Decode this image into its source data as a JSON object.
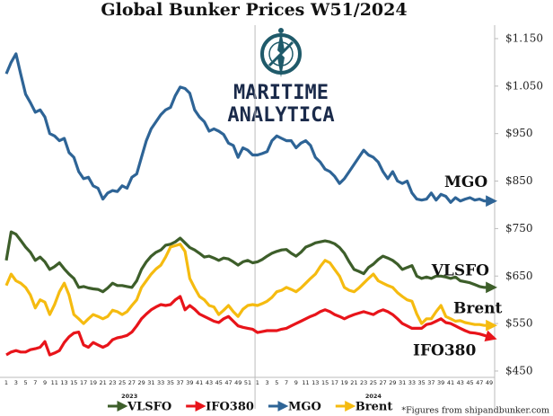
{
  "chart_data": {
    "type": "line",
    "title": "Global Bunker Prices W51/2024",
    "logo_lines": [
      "MARITIME",
      "ANALYTICA"
    ],
    "note": "*Figures from shipandbunker.com",
    "x_groups": [
      "2023",
      "2024"
    ],
    "categories": [
      "1",
      null,
      "3",
      null,
      "5",
      null,
      "7",
      null,
      "9",
      null,
      "11",
      null,
      "13",
      null,
      "15",
      null,
      "17",
      null,
      "19",
      null,
      "21",
      null,
      "23",
      null,
      "25",
      null,
      "27",
      null,
      "29",
      null,
      "31",
      null,
      "33",
      null,
      "35",
      null,
      "37",
      null,
      "39",
      null,
      "41",
      null,
      "43",
      null,
      "45",
      null,
      "47",
      null,
      "49",
      null,
      "51",
      null,
      "1",
      null,
      "3",
      null,
      "5",
      null,
      "7",
      null,
      "9",
      null,
      "11",
      null,
      "13",
      null,
      "15",
      null,
      "17",
      null,
      "19",
      null,
      "21",
      null,
      "23",
      null,
      "25",
      null,
      "27",
      null,
      "29",
      null,
      "31",
      null,
      "33",
      null,
      "35",
      null,
      "37",
      null,
      "39",
      null,
      "41",
      null,
      "43",
      null,
      "45",
      null,
      "47",
      null,
      "49"
    ],
    "series": [
      {
        "name": "VLSFO",
        "color": "#3d5e2a",
        "values": [
          683,
          743,
          738,
          725,
          711,
          700,
          683,
          690,
          680,
          664,
          670,
          678,
          665,
          654,
          645,
          626,
          628,
          625,
          623,
          622,
          617,
          625,
          635,
          630,
          630,
          628,
          626,
          640,
          664,
          680,
          692,
          700,
          705,
          715,
          717,
          722,
          730,
          720,
          710,
          705,
          698,
          690,
          692,
          688,
          683,
          688,
          686,
          680,
          673,
          680,
          683,
          678,
          680,
          685,
          692,
          698,
          702,
          705,
          706,
          698,
          692,
          700,
          711,
          715,
          720,
          722,
          724,
          722,
          718,
          710,
          698,
          680,
          664,
          660,
          655,
          668,
          675,
          685,
          692,
          688,
          683,
          675,
          664,
          668,
          672,
          650,
          645,
          648,
          645,
          650,
          650,
          648,
          645,
          648,
          640,
          638,
          636,
          632,
          628,
          626,
          626
        ]
      },
      {
        "name": "IFO380",
        "color": "#e8141a",
        "values": [
          484,
          490,
          493,
          490,
          490,
          495,
          497,
          500,
          512,
          484,
          488,
          493,
          510,
          522,
          530,
          532,
          505,
          500,
          510,
          505,
          500,
          505,
          516,
          520,
          522,
          525,
          532,
          545,
          560,
          570,
          579,
          585,
          590,
          588,
          590,
          600,
          607,
          579,
          588,
          580,
          570,
          565,
          560,
          555,
          552,
          560,
          565,
          555,
          545,
          542,
          540,
          538,
          531,
          533,
          535,
          535,
          535,
          538,
          540,
          545,
          550,
          555,
          560,
          565,
          569,
          575,
          579,
          575,
          569,
          565,
          560,
          565,
          569,
          572,
          575,
          572,
          569,
          575,
          579,
          575,
          569,
          560,
          550,
          545,
          540,
          540,
          540,
          548,
          550,
          555,
          560,
          552,
          550,
          545,
          540,
          535,
          531,
          530,
          528,
          525,
          522
        ]
      },
      {
        "name": "MGO",
        "color": "#2e6496",
        "values": [
          1076,
          1100,
          1118,
          1075,
          1033,
          1015,
          995,
          1000,
          985,
          950,
          945,
          935,
          940,
          910,
          900,
          870,
          855,
          858,
          840,
          835,
          812,
          825,
          830,
          828,
          840,
          835,
          858,
          865,
          900,
          935,
          960,
          975,
          990,
          1000,
          1005,
          1030,
          1048,
          1045,
          1035,
          1000,
          985,
          975,
          955,
          960,
          955,
          948,
          930,
          925,
          900,
          920,
          915,
          905,
          905,
          908,
          912,
          935,
          945,
          940,
          935,
          935,
          920,
          930,
          935,
          925,
          900,
          890,
          875,
          870,
          860,
          845,
          855,
          870,
          885,
          900,
          915,
          905,
          900,
          890,
          870,
          855,
          870,
          850,
          845,
          850,
          825,
          812,
          810,
          812,
          825,
          810,
          822,
          818,
          805,
          815,
          808,
          812,
          815,
          810,
          812,
          808,
          808
        ]
      },
      {
        "name": "Brent",
        "color": "#f5bb10",
        "values": [
          630,
          654,
          640,
          635,
          626,
          610,
          583,
          600,
          595,
          569,
          590,
          617,
          635,
          610,
          569,
          560,
          550,
          560,
          569,
          565,
          560,
          565,
          578,
          575,
          569,
          575,
          588,
          600,
          626,
          640,
          654,
          665,
          673,
          690,
          711,
          714,
          717,
          702,
          645,
          625,
          607,
          600,
          588,
          585,
          569,
          578,
          588,
          575,
          565,
          580,
          588,
          590,
          588,
          592,
          597,
          605,
          617,
          620,
          626,
          622,
          617,
          625,
          635,
          645,
          654,
          670,
          683,
          678,
          664,
          650,
          626,
          620,
          617,
          625,
          635,
          645,
          654,
          640,
          635,
          630,
          626,
          615,
          607,
          600,
          597,
          570,
          550,
          560,
          560,
          575,
          588,
          565,
          560,
          555,
          556,
          552,
          550,
          548,
          548,
          546,
          546
        ]
      }
    ],
    "ylim": [
      438,
      1160
    ],
    "yticks": [
      {
        "value": 1150,
        "label": "$1.150"
      },
      {
        "value": 1050,
        "label": "$1.050"
      },
      {
        "value": 950,
        "label": "$950"
      },
      {
        "value": 850,
        "label": "$850"
      },
      {
        "value": 750,
        "label": "$750"
      },
      {
        "value": 650,
        "label": "$650"
      },
      {
        "value": 550,
        "label": "$550"
      },
      {
        "value": 450,
        "label": "$450"
      }
    ],
    "axis_side": "right",
    "grid": false,
    "legend": "bottom"
  }
}
